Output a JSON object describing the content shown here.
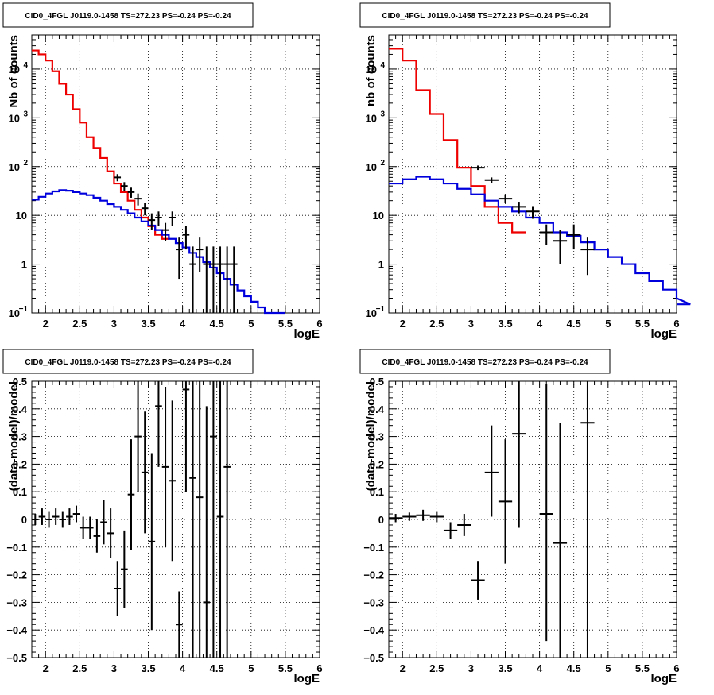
{
  "chart_data": [
    {
      "type": "line",
      "title": "CID0_4FGL J0119.0-1458 TS=272.23 PS=-0.24 PS=-0.24",
      "xlabel": "logE",
      "ylabel": "Nb of counts",
      "xlim": [
        1.8,
        6
      ],
      "ylim": [
        0.1,
        50000
      ],
      "yscale": "log",
      "grid": true,
      "xticks": [
        "2",
        "2.5",
        "3",
        "3.5",
        "4",
        "4.5",
        "5",
        "5.5",
        "6"
      ],
      "yticks": [
        {
          "value": 0.1,
          "label": "10",
          "exp": "−1"
        },
        {
          "value": 1,
          "label": "1",
          "exp": ""
        },
        {
          "value": 10,
          "label": "10",
          "exp": ""
        },
        {
          "value": 100,
          "label": "10",
          "exp": "2"
        },
        {
          "value": 1000,
          "label": "10",
          "exp": "3"
        },
        {
          "value": 10000,
          "label": "10",
          "exp": "4"
        }
      ],
      "bin_edges_start": 1.8,
      "bin_width": 0.1,
      "series": [
        {
          "color": "#ee0000",
          "style": "hist",
          "values": [
            24000,
            20000,
            15000,
            9000,
            5000,
            3000,
            1500,
            800,
            400,
            240,
            150,
            80,
            45,
            30,
            20,
            13,
            9,
            6,
            4,
            3.3
          ]
        },
        {
          "color": "#0000dd",
          "style": "hist",
          "values": [
            21,
            24,
            28,
            31,
            33,
            32,
            30,
            28,
            26,
            23,
            20,
            17,
            15,
            13,
            11,
            9,
            7.5,
            6.2,
            5,
            4,
            3.3,
            2.7,
            2.2,
            1.7,
            1.4,
            1.1,
            0.85,
            0.65,
            0.5,
            0.38,
            0.29,
            0.22,
            0.17,
            0.13,
            0.1,
            0.1,
            0.1
          ]
        }
      ],
      "points": {
        "color": "#000000",
        "x": [
          3.05,
          3.15,
          3.25,
          3.35,
          3.45,
          3.55,
          3.65,
          3.75,
          3.85,
          3.95,
          4.05,
          4.15,
          4.25,
          4.35,
          4.45,
          4.55,
          4.65,
          4.75
        ],
        "y": [
          60,
          40,
          30,
          22,
          14,
          8,
          9,
          5,
          9,
          2,
          4,
          1,
          2,
          1,
          1,
          1,
          1,
          1
        ],
        "ylo": [
          50,
          32,
          23,
          16,
          10,
          5,
          6,
          3,
          6,
          0.5,
          2,
          0.1,
          0.7,
          0.1,
          0.1,
          0.1,
          0.1,
          0.1
        ],
        "yhi": [
          70,
          48,
          37,
          28,
          18,
          11,
          12,
          7,
          12,
          3.5,
          6,
          2.3,
          3.5,
          2.3,
          2.3,
          2.3,
          2.3,
          2.3
        ]
      }
    },
    {
      "type": "line",
      "title": "CID0_4FGL J0119.0-1458 TS=272.23 PS=-0.24 PS=-0.24",
      "xlabel": "logE",
      "ylabel": "nb of counts",
      "xlim": [
        1.8,
        6
      ],
      "ylim": [
        0.1,
        50000
      ],
      "yscale": "log",
      "grid": true,
      "xticks": [
        "2",
        "2.5",
        "3",
        "3.5",
        "4",
        "4.5",
        "5",
        "5.5",
        "6"
      ],
      "yticks": [
        {
          "value": 0.1,
          "label": "10",
          "exp": "−1"
        },
        {
          "value": 1,
          "label": "1",
          "exp": ""
        },
        {
          "value": 10,
          "label": "10",
          "exp": ""
        },
        {
          "value": 100,
          "label": "10",
          "exp": "2"
        },
        {
          "value": 1000,
          "label": "10",
          "exp": "3"
        },
        {
          "value": 10000,
          "label": "10",
          "exp": "4"
        }
      ],
      "bin_edges_start": 1.8,
      "bin_width": 0.2,
      "series": [
        {
          "color": "#ee0000",
          "style": "hist",
          "values": [
            26000,
            15000,
            3700,
            1200,
            350,
            95,
            40,
            15,
            7,
            4.5
          ]
        },
        {
          "color": "#0000dd",
          "style": "hist",
          "values": [
            45,
            55,
            62,
            55,
            45,
            35,
            27,
            20,
            15,
            12,
            9,
            7,
            4.5,
            3.8,
            2.8,
            2,
            1.4,
            1,
            0.65,
            0.45,
            0.3,
            0.2,
            0.15
          ]
        }
      ],
      "points": {
        "color": "#000000",
        "x": [
          3.1,
          3.3,
          3.5,
          3.7,
          3.9,
          4.1,
          4.3,
          4.5,
          4.7
        ],
        "y": [
          95,
          53,
          22,
          15,
          12,
          4.5,
          3,
          4,
          2
        ],
        "ylo": [
          85,
          46,
          18,
          11,
          8.5,
          2.5,
          1,
          2,
          0.6
        ],
        "yhi": [
          105,
          60,
          27,
          19,
          15.5,
          6.5,
          5,
          6.5,
          3.5
        ]
      }
    },
    {
      "type": "scatter",
      "title": "CID0_4FGL J0119.0-1458 TS=272.23 PS=-0.24 PS=-0.24",
      "xlabel": "logE",
      "ylabel": "(data-model)/model",
      "xlim": [
        1.8,
        6
      ],
      "ylim": [
        -0.5,
        0.5
      ],
      "yscale": "linear",
      "grid": true,
      "xticks": [
        "2",
        "2.5",
        "3",
        "3.5",
        "4",
        "4.5",
        "5",
        "5.5",
        "6"
      ],
      "yticks": [
        {
          "value": -0.5,
          "label": "−0.5",
          "exp": ""
        },
        {
          "value": -0.4,
          "label": "−0.4",
          "exp": ""
        },
        {
          "value": -0.3,
          "label": "−0.3",
          "exp": ""
        },
        {
          "value": -0.2,
          "label": "−0.2",
          "exp": ""
        },
        {
          "value": -0.1,
          "label": "−0.1",
          "exp": ""
        },
        {
          "value": 0,
          "label": "0",
          "exp": ""
        },
        {
          "value": 0.1,
          "label": "0.1",
          "exp": ""
        },
        {
          "value": 0.2,
          "label": "0.2",
          "exp": ""
        },
        {
          "value": 0.3,
          "label": "0.3",
          "exp": ""
        },
        {
          "value": 0.4,
          "label": "0.4",
          "exp": ""
        },
        {
          "value": 0.5,
          "label": "0.5",
          "exp": ""
        }
      ],
      "xerr": 0.05,
      "points": {
        "color": "#000000",
        "x": [
          1.85,
          1.95,
          2.05,
          2.15,
          2.25,
          2.35,
          2.45,
          2.55,
          2.65,
          2.75,
          2.85,
          2.95,
          3.05,
          3.15,
          3.25,
          3.35,
          3.45,
          3.55,
          3.65,
          3.75,
          3.85,
          3.95,
          4.05,
          4.15,
          4.25,
          4.35,
          4.45,
          4.55,
          4.65
        ],
        "y": [
          0.0,
          0.01,
          0.0,
          0.01,
          0.0,
          0.01,
          0.02,
          -0.03,
          -0.03,
          -0.06,
          -0.01,
          -0.05,
          -0.25,
          -0.18,
          0.09,
          0.3,
          0.17,
          -0.08,
          0.41,
          0.19,
          0.14,
          -0.38,
          0.47,
          0.15,
          0.08,
          -0.3,
          0.3,
          0.01,
          0.19
        ],
        "ylo": [
          -0.02,
          -0.02,
          -0.03,
          -0.02,
          -0.03,
          -0.02,
          -0.01,
          -0.07,
          -0.07,
          -0.12,
          -0.09,
          -0.14,
          -0.35,
          -0.32,
          -0.11,
          0.1,
          -0.05,
          -0.4,
          0.19,
          -0.1,
          -0.15,
          -0.5,
          0.1,
          -0.5,
          -0.5,
          -0.5,
          -0.5,
          -0.5,
          -0.5
        ],
        "yhi": [
          0.02,
          0.04,
          0.03,
          0.04,
          0.03,
          0.04,
          0.05,
          0.01,
          0.01,
          0.0,
          0.07,
          0.04,
          -0.15,
          -0.04,
          0.29,
          0.5,
          0.39,
          0.24,
          0.63,
          0.48,
          0.43,
          -0.26,
          0.84,
          0.8,
          0.66,
          0.41,
          1.0,
          0.77,
          0.88
        ]
      }
    },
    {
      "type": "scatter",
      "title": "CID0_4FGL J0119.0-1458 TS=272.23 PS=-0.24 PS=-0.24",
      "xlabel": "logE",
      "ylabel": "(data-model)/model",
      "xlim": [
        1.8,
        6
      ],
      "ylim": [
        -0.5,
        0.5
      ],
      "yscale": "linear",
      "grid": true,
      "xticks": [
        "2",
        "2.5",
        "3",
        "3.5",
        "4",
        "4.5",
        "5",
        "5.5",
        "6"
      ],
      "yticks": [
        {
          "value": -0.5,
          "label": "−0.5",
          "exp": ""
        },
        {
          "value": -0.4,
          "label": "−0.4",
          "exp": ""
        },
        {
          "value": -0.3,
          "label": "−0.3",
          "exp": ""
        },
        {
          "value": -0.2,
          "label": "−0.2",
          "exp": ""
        },
        {
          "value": -0.1,
          "label": "−0.1",
          "exp": ""
        },
        {
          "value": 0,
          "label": "0",
          "exp": ""
        },
        {
          "value": 0.1,
          "label": "0.1",
          "exp": ""
        },
        {
          "value": 0.2,
          "label": "0.2",
          "exp": ""
        },
        {
          "value": 0.3,
          "label": "0.3",
          "exp": ""
        },
        {
          "value": 0.4,
          "label": "0.4",
          "exp": ""
        },
        {
          "value": 0.5,
          "label": "0.5",
          "exp": ""
        }
      ],
      "xerr": 0.1,
      "points": {
        "color": "#000000",
        "x": [
          1.9,
          2.1,
          2.3,
          2.5,
          2.7,
          2.9,
          3.1,
          3.3,
          3.5,
          3.7,
          4.1,
          4.3,
          4.7
        ],
        "y": [
          0.005,
          0.01,
          0.015,
          0.01,
          -0.04,
          -0.02,
          -0.22,
          0.17,
          0.065,
          0.31,
          0.02,
          -0.085,
          0.35
        ],
        "ylo": [
          -0.01,
          -0.005,
          -0.005,
          -0.01,
          -0.07,
          -0.06,
          -0.29,
          0.01,
          -0.16,
          -0.03,
          -0.44,
          -0.5,
          -0.5
        ],
        "yhi": [
          0.02,
          0.025,
          0.035,
          0.03,
          -0.01,
          0.02,
          -0.15,
          0.34,
          0.29,
          0.65,
          0.49,
          0.35,
          1.2
        ]
      }
    }
  ]
}
